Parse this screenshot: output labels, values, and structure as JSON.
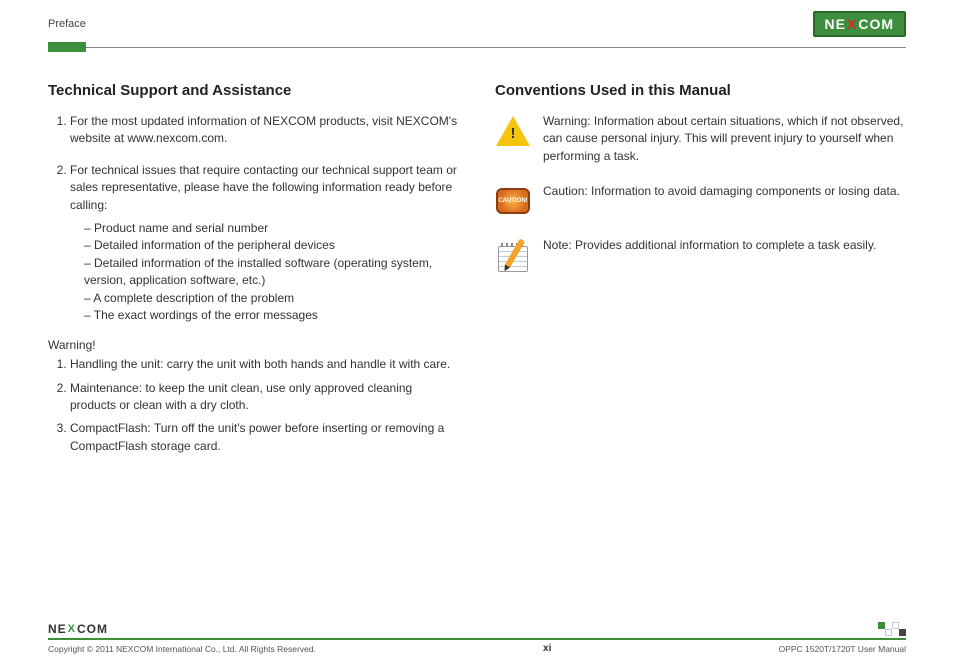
{
  "header": {
    "section_label": "Preface",
    "brand_pre": "NE",
    "brand_x": "X",
    "brand_post": "COM"
  },
  "left": {
    "heading": "Technical Support and Assistance",
    "item1": "For the most updated information of NEXCOM products, visit NEXCOM's website at www.nexcom.com.",
    "item2_intro": "For technical issues that require contacting our technical support team or sales representative, please have the following information ready before calling:",
    "sub1": "Product name and serial number",
    "sub2": "Detailed information of the peripheral devices",
    "sub3": "Detailed information of the installed software (operating system, version, application software, etc.)",
    "sub4": "A complete description of the problem",
    "sub5": "The exact wordings of the error messages",
    "warning_label": "Warning!",
    "w1": "Handling the unit: carry the unit with both hands and handle it with care.",
    "w2": "Maintenance: to keep the unit clean, use only approved cleaning products or clean with a dry cloth.",
    "w3": "CompactFlash: Turn off the unit's power before inserting or removing a CompactFlash storage card."
  },
  "right": {
    "heading": "Conventions Used in this Manual",
    "warning_text": "Warning: Information about certain situations, which if not observed, can cause personal injury. This will prevent injury to yourself when performing a task.",
    "caution_text": "Caution: Information to avoid damaging components or losing data.",
    "caution_badge_label": "CAUTION!",
    "note_text": "Note: Provides additional information to complete a task easily."
  },
  "footer": {
    "brand_pre": "NE",
    "brand_x": "X",
    "brand_post": "COM",
    "copyright": "Copyright © 2011 NEXCOM International Co., Ltd. All Rights Reserved.",
    "page_num": "xi",
    "manual_id": "OPPC 1520T/1720T User Manual",
    "sq_colors": [
      "#3d8f3d",
      "#ffffff",
      "#ffffff",
      "#444444"
    ]
  }
}
